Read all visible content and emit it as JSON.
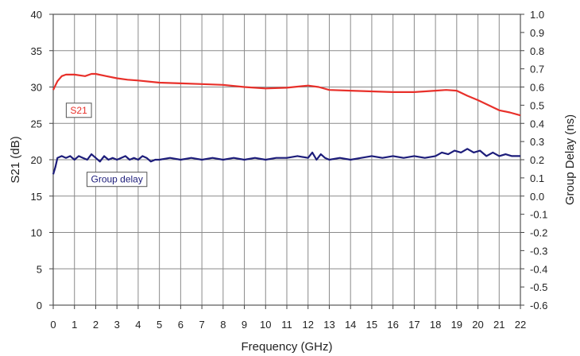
{
  "chart_data": {
    "type": "line",
    "xlabel": "Frequency (GHz)",
    "ylabel_left": "S21 (dB)",
    "ylabel_right": "Group Delay (ns)",
    "xlim": [
      0,
      22
    ],
    "ylim_left": [
      0,
      40
    ],
    "ylim_right": [
      -0.6,
      1.0
    ],
    "x_ticks": [
      "0",
      "1",
      "2",
      "3",
      "4",
      "5",
      "6",
      "7",
      "8",
      "9",
      "10",
      "11",
      "12",
      "13",
      "14",
      "15",
      "16",
      "17",
      "18",
      "19",
      "20",
      "21",
      "22"
    ],
    "y_left_ticks": [
      "0",
      "5",
      "10",
      "15",
      "20",
      "25",
      "30",
      "35",
      "40"
    ],
    "y_right_ticks": [
      "-0.6",
      "-0.5",
      "-0.4",
      "-0.3",
      "-0.2",
      "-0.1",
      "0.0",
      "0.1",
      "0.2",
      "0.3",
      "0.4",
      "0.5",
      "0.6",
      "0.7",
      "0.8",
      "0.9",
      "1.0"
    ],
    "grid": true,
    "series": [
      {
        "name": "S21",
        "axis": "left",
        "color": "#e8302a",
        "label_at": [
          1.2,
          26.8
        ],
        "x": [
          0,
          0.2,
          0.4,
          0.6,
          1.0,
          1.5,
          1.8,
          2.0,
          2.5,
          3.0,
          3.5,
          4.0,
          5.0,
          6.0,
          7.0,
          8.0,
          9.0,
          10.0,
          11.0,
          12.0,
          12.5,
          13.0,
          14.0,
          15.0,
          16.0,
          17.0,
          18.0,
          18.5,
          19.0,
          19.5,
          20.0,
          20.5,
          21.0,
          21.5,
          22.0
        ],
        "y": [
          29.6,
          30.8,
          31.5,
          31.7,
          31.7,
          31.5,
          31.8,
          31.8,
          31.5,
          31.2,
          31.0,
          30.9,
          30.6,
          30.5,
          30.4,
          30.3,
          30.0,
          29.8,
          29.9,
          30.2,
          30.0,
          29.6,
          29.5,
          29.4,
          29.3,
          29.3,
          29.5,
          29.6,
          29.5,
          28.8,
          28.2,
          27.5,
          26.8,
          26.5,
          26.1
        ]
      },
      {
        "name": "Group delay",
        "axis": "right",
        "color": "#1c1c7a",
        "label_at": [
          3.0,
          17.3
        ],
        "x": [
          0,
          0.1,
          0.2,
          0.4,
          0.6,
          0.8,
          1.0,
          1.2,
          1.4,
          1.6,
          1.8,
          2.0,
          2.2,
          2.4,
          2.6,
          2.8,
          3.0,
          3.2,
          3.4,
          3.6,
          3.8,
          4.0,
          4.2,
          4.4,
          4.6,
          4.8,
          5.0,
          5.5,
          6.0,
          6.5,
          7.0,
          7.5,
          8.0,
          8.5,
          9.0,
          9.5,
          10.0,
          10.5,
          11.0,
          11.5,
          12.0,
          12.2,
          12.4,
          12.6,
          12.8,
          13.0,
          13.5,
          14.0,
          14.5,
          15.0,
          15.5,
          16.0,
          16.5,
          17.0,
          17.5,
          18.0,
          18.3,
          18.6,
          18.9,
          19.2,
          19.5,
          19.8,
          20.1,
          20.4,
          20.7,
          21.0,
          21.3,
          21.6,
          22.0
        ],
        "y": [
          0.12,
          0.16,
          0.21,
          0.22,
          0.21,
          0.22,
          0.2,
          0.22,
          0.21,
          0.2,
          0.23,
          0.21,
          0.19,
          0.22,
          0.2,
          0.21,
          0.2,
          0.21,
          0.22,
          0.2,
          0.21,
          0.2,
          0.22,
          0.21,
          0.19,
          0.2,
          0.2,
          0.21,
          0.2,
          0.21,
          0.2,
          0.21,
          0.2,
          0.21,
          0.2,
          0.21,
          0.2,
          0.21,
          0.21,
          0.22,
          0.21,
          0.24,
          0.2,
          0.23,
          0.21,
          0.2,
          0.21,
          0.2,
          0.21,
          0.22,
          0.21,
          0.22,
          0.21,
          0.22,
          0.21,
          0.22,
          0.24,
          0.23,
          0.25,
          0.24,
          0.26,
          0.24,
          0.25,
          0.22,
          0.24,
          0.22,
          0.23,
          0.22,
          0.22
        ]
      }
    ]
  }
}
